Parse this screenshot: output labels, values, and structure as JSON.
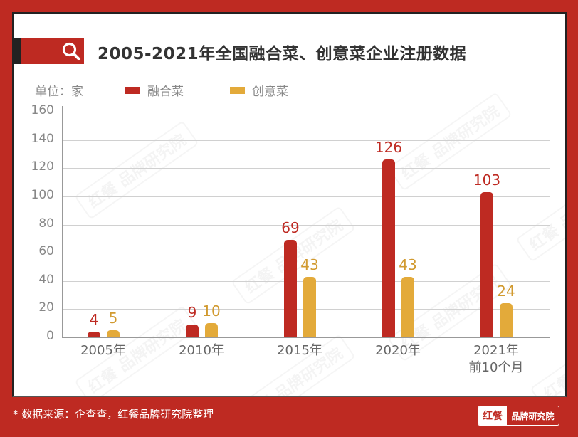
{
  "header": {
    "title": "2005-2021年全国融合菜、创意菜企业注册数据",
    "icon": "search-icon"
  },
  "legend": {
    "unit": "单位：家",
    "series": [
      {
        "name": "融合菜",
        "color": "#BE2A22"
      },
      {
        "name": "创意菜",
        "color": "#E3AA3A"
      }
    ]
  },
  "footer": {
    "source": "* 数据来源：企查查，红餐品牌研究院整理",
    "logo_left": "红餐",
    "logo_right": "品牌研究院"
  },
  "watermark": "红餐 品牌研究院",
  "colors": {
    "frame": "#BE2A22",
    "series1": "#BE2A22",
    "series2": "#E3AA3A",
    "axis_text": "#888888"
  },
  "chart_data": {
    "type": "bar",
    "title": "2005-2021年全国融合菜、创意菜企业注册数据",
    "xlabel": "",
    "ylabel": "单位：家",
    "categories": [
      "2005年",
      "2010年",
      "2015年",
      "2020年",
      "2021年\n前10个月"
    ],
    "category_lines": [
      [
        "2005年"
      ],
      [
        "2010年"
      ],
      [
        "2015年"
      ],
      [
        "2020年"
      ],
      [
        "2021年",
        "前10个月"
      ]
    ],
    "series": [
      {
        "name": "融合菜",
        "values": [
          4,
          9,
          69,
          126,
          103
        ],
        "color": "#BE2A22"
      },
      {
        "name": "创意菜",
        "values": [
          5,
          10,
          43,
          43,
          24
        ],
        "color": "#E3AA3A"
      }
    ],
    "ylim": [
      0,
      160
    ],
    "yticks": [
      0,
      20,
      40,
      60,
      80,
      100,
      120,
      140,
      160
    ],
    "grid": true,
    "legend_position": "top-left",
    "data_labels": true
  }
}
